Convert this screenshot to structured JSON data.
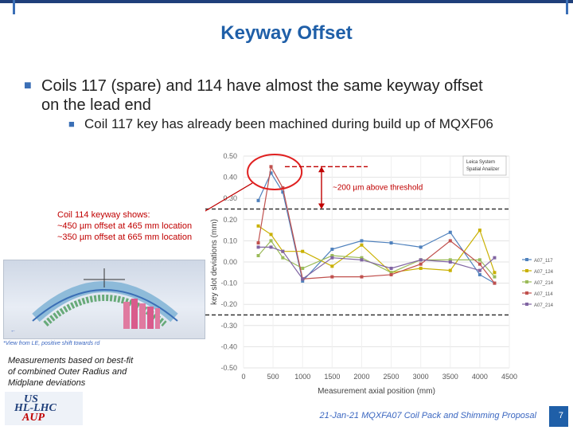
{
  "slide": {
    "title": "Keyway Offset",
    "bullet1": "Coils 117 (spare) and 114 have almost the same keyway offset on the lead end",
    "bullet2": "Coil 117 key has already been machined during build up of MQXF06",
    "footer": "21-Jan-21 MQXFA07 Coil Pack and Shimming Proposal",
    "page_number": "7"
  },
  "annotation": {
    "line1": "Coil 114 keyway shows:",
    "line2": "~450 µm offset at 465 mm location",
    "line3": "~350 µm offset at 665 mm location"
  },
  "threshold_note": "~200 µm above threshold",
  "inset_caption": "*View from LE, positive shift towards rd",
  "measurement_note": {
    "line1": "Measurements based on best-fit",
    "line2": "of combined Outer Radius and",
    "line3": "Midplane deviations"
  },
  "logo": {
    "line1": "US",
    "line2": "HL-LHC",
    "line3": "AUP"
  },
  "colors": {
    "title": "#1f5fa8",
    "annotation": "#c00000",
    "threshold_line": "#333333",
    "highlight": "#e02020"
  },
  "chart_data": {
    "type": "line",
    "title": "",
    "xlabel": "Measurement axial position (mm)",
    "ylabel": "key slot deviations (mm)",
    "xlim": [
      0,
      4500
    ],
    "ylim": [
      -0.5,
      0.5
    ],
    "x_ticks": [
      0,
      500,
      1000,
      1500,
      2000,
      2500,
      3000,
      3500,
      4000,
      4500
    ],
    "y_ticks": [
      0.5,
      0.4,
      0.3,
      0.2,
      0.1,
      0.0,
      -0.1,
      -0.2,
      -0.3,
      -0.4,
      -0.5
    ],
    "grid": true,
    "thresholds": [
      0.25,
      -0.25
    ],
    "legend_box": {
      "line1": "Leica System",
      "line2": "Spatial Analizer"
    },
    "x": [
      250,
      465,
      665,
      1000,
      1500,
      2000,
      2500,
      3000,
      3500,
      4000,
      4250
    ],
    "series": [
      {
        "name": "A07_117",
        "color": "#4f81bd",
        "values": [
          0.29,
          0.42,
          0.33,
          -0.09,
          0.06,
          0.1,
          0.09,
          0.07,
          0.14,
          -0.06,
          -0.1
        ]
      },
      {
        "name": "A07_124",
        "color": "#c9b000",
        "values": [
          0.17,
          0.13,
          0.05,
          0.05,
          -0.02,
          0.08,
          -0.05,
          -0.03,
          -0.04,
          0.15,
          -0.05
        ]
      },
      {
        "name": "A07_214",
        "color": "#9bbb59",
        "values": [
          0.03,
          0.1,
          0.02,
          -0.03,
          0.03,
          0.02,
          -0.05,
          0.01,
          0.01,
          0.01,
          -0.07
        ]
      },
      {
        "name": "A07_114",
        "color": "#c0504d",
        "values": [
          0.09,
          0.45,
          0.35,
          -0.08,
          -0.07,
          -0.07,
          -0.06,
          -0.01,
          0.1,
          -0.01,
          -0.1
        ]
      },
      {
        "name": "A07_214",
        "color": "#8064a2",
        "values": [
          0.07,
          0.07,
          0.05,
          -0.08,
          0.02,
          0.01,
          -0.03,
          0.01,
          0.0,
          -0.04,
          0.02
        ]
      }
    ]
  }
}
